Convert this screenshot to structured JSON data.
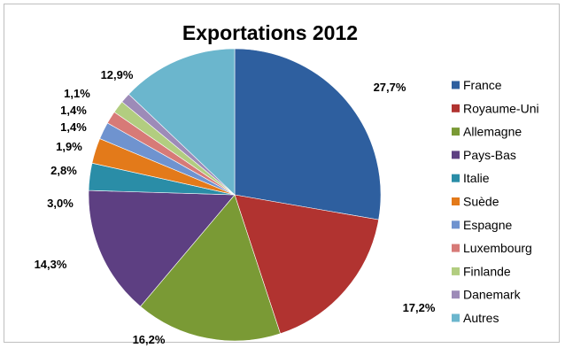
{
  "chart_data": {
    "type": "pie",
    "title": "Exportations 2012",
    "categories": [
      "France",
      "Royaume-Uni",
      "Allemagne",
      "Pays-Bas",
      "Italie",
      "Suède",
      "Espagne",
      "Luxembourg",
      "Finlande",
      "Danemark",
      "Autres"
    ],
    "values": [
      27.7,
      17.2,
      16.2,
      14.3,
      3.0,
      2.8,
      1.9,
      1.4,
      1.4,
      1.1,
      12.9
    ],
    "data_labels": [
      "27,7%",
      "17,2%",
      "16,2%",
      "14,3%",
      "3,0%",
      "2,8%",
      "1,9%",
      "1,4%",
      "1,4%",
      "1,1%",
      "12,9%"
    ],
    "colors": [
      "#2e5f9f",
      "#b13330",
      "#7a9a35",
      "#5d3f82",
      "#2a8da7",
      "#e37a1a",
      "#6f93cf",
      "#d77a77",
      "#b2cd80",
      "#9d8bb8",
      "#6bb6cd"
    ],
    "legend_position": "right",
    "start_angle": "12 o'clock, clockwise"
  }
}
